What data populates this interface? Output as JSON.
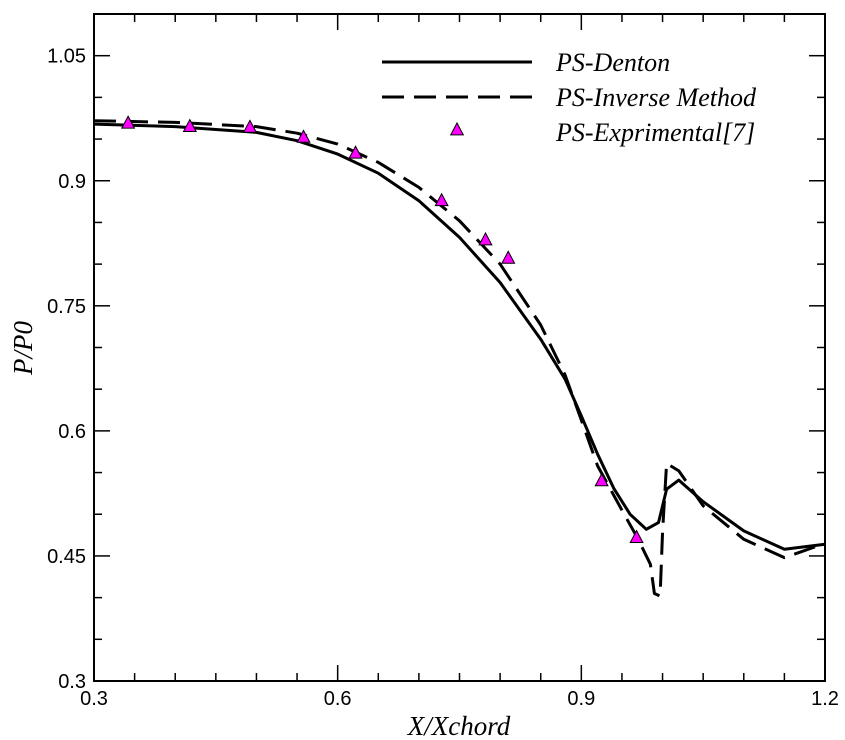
{
  "chart_data": {
    "type": "line",
    "title": "",
    "xlabel": "X/Xchord",
    "ylabel": "P/P0",
    "xlim": [
      0.3,
      1.2
    ],
    "ylim": [
      0.3,
      1.1
    ],
    "x_ticks": [
      "0.3",
      "0.6",
      "0.9",
      "1.2"
    ],
    "y_ticks": [
      "0.3",
      "0.45",
      "0.6",
      "0.75",
      "0.9",
      "1.05"
    ],
    "grid": false,
    "legend_position": "top-right",
    "series": [
      {
        "name": "PS-Denton",
        "style": "solid",
        "color": "#000000",
        "x": [
          0.3,
          0.4,
          0.5,
          0.55,
          0.6,
          0.65,
          0.7,
          0.75,
          0.8,
          0.85,
          0.88,
          0.9,
          0.92,
          0.94,
          0.96,
          0.98,
          0.995,
          1.005,
          1.02,
          1.05,
          1.1,
          1.15,
          1.2
        ],
        "y": [
          0.968,
          0.965,
          0.958,
          0.948,
          0.932,
          0.909,
          0.876,
          0.832,
          0.778,
          0.71,
          0.662,
          0.618,
          0.572,
          0.531,
          0.5,
          0.482,
          0.49,
          0.53,
          0.541,
          0.515,
          0.48,
          0.458,
          0.464
        ]
      },
      {
        "name": "PS-Inverse Method",
        "style": "dashed",
        "color": "#000000",
        "x": [
          0.3,
          0.4,
          0.5,
          0.55,
          0.6,
          0.65,
          0.7,
          0.75,
          0.8,
          0.85,
          0.88,
          0.9,
          0.92,
          0.95,
          0.97,
          0.985,
          0.99,
          0.997,
          1.0,
          1.005,
          1.02,
          1.05,
          1.1,
          1.15,
          1.2
        ],
        "y": [
          0.972,
          0.97,
          0.965,
          0.957,
          0.944,
          0.922,
          0.892,
          0.852,
          0.8,
          0.727,
          0.667,
          0.613,
          0.558,
          0.505,
          0.47,
          0.44,
          0.405,
          0.402,
          0.48,
          0.561,
          0.552,
          0.51,
          0.47,
          0.448,
          0.465
        ]
      },
      {
        "name": "PS-Exprimental[7]",
        "style": "markers",
        "marker": "triangle",
        "color": "#ff00ff",
        "x": [
          0.342,
          0.418,
          0.492,
          0.558,
          0.622,
          0.728,
          0.782,
          0.81,
          0.925,
          0.968
        ],
        "y": [
          0.969,
          0.965,
          0.964,
          0.952,
          0.933,
          0.876,
          0.829,
          0.807,
          0.54,
          0.472
        ]
      }
    ]
  }
}
